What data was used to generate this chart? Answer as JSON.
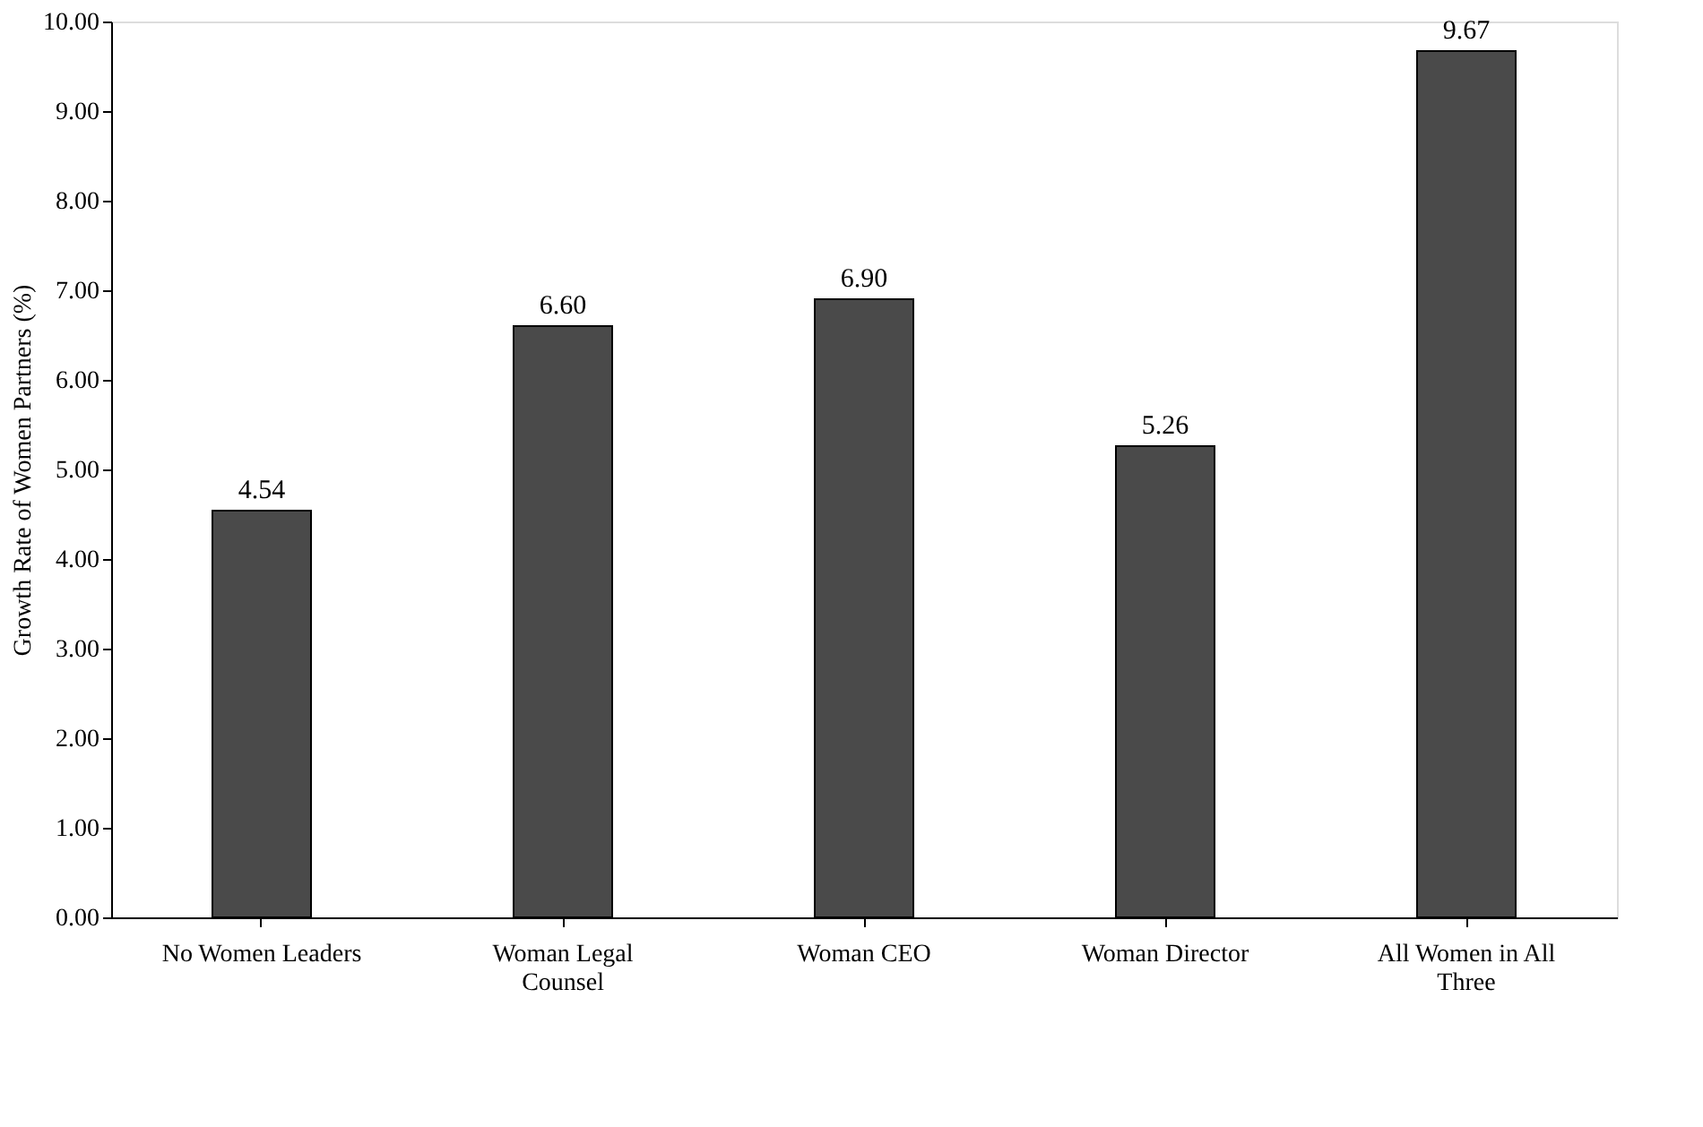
{
  "chart_data": {
    "type": "bar",
    "ylabel": "Growth Rate of Women Partners (%)",
    "categories": [
      "No Women Leaders",
      "Woman Legal Counsel",
      "Woman CEO",
      "Woman Director",
      "All Women in All Three"
    ],
    "values": [
      4.54,
      6.6,
      6.9,
      5.26,
      9.67
    ],
    "value_labels": [
      "4.54",
      "6.60",
      "6.90",
      "5.26",
      "9.67"
    ],
    "color": "#4a4a4a",
    "ylim": [
      0,
      10
    ],
    "yticks": [
      {
        "value": 0,
        "label": "0.00"
      },
      {
        "value": 1,
        "label": "1.00"
      },
      {
        "value": 2,
        "label": "2.00"
      },
      {
        "value": 3,
        "label": "3.00"
      },
      {
        "value": 4,
        "label": "4.00"
      },
      {
        "value": 5,
        "label": "5.00"
      },
      {
        "value": 6,
        "label": "6.00"
      },
      {
        "value": 7,
        "label": "7.00"
      },
      {
        "value": 8,
        "label": "8.00"
      },
      {
        "value": 9,
        "label": "9.00"
      },
      {
        "value": 10,
        "label": "10.00"
      }
    ],
    "grid": false
  }
}
